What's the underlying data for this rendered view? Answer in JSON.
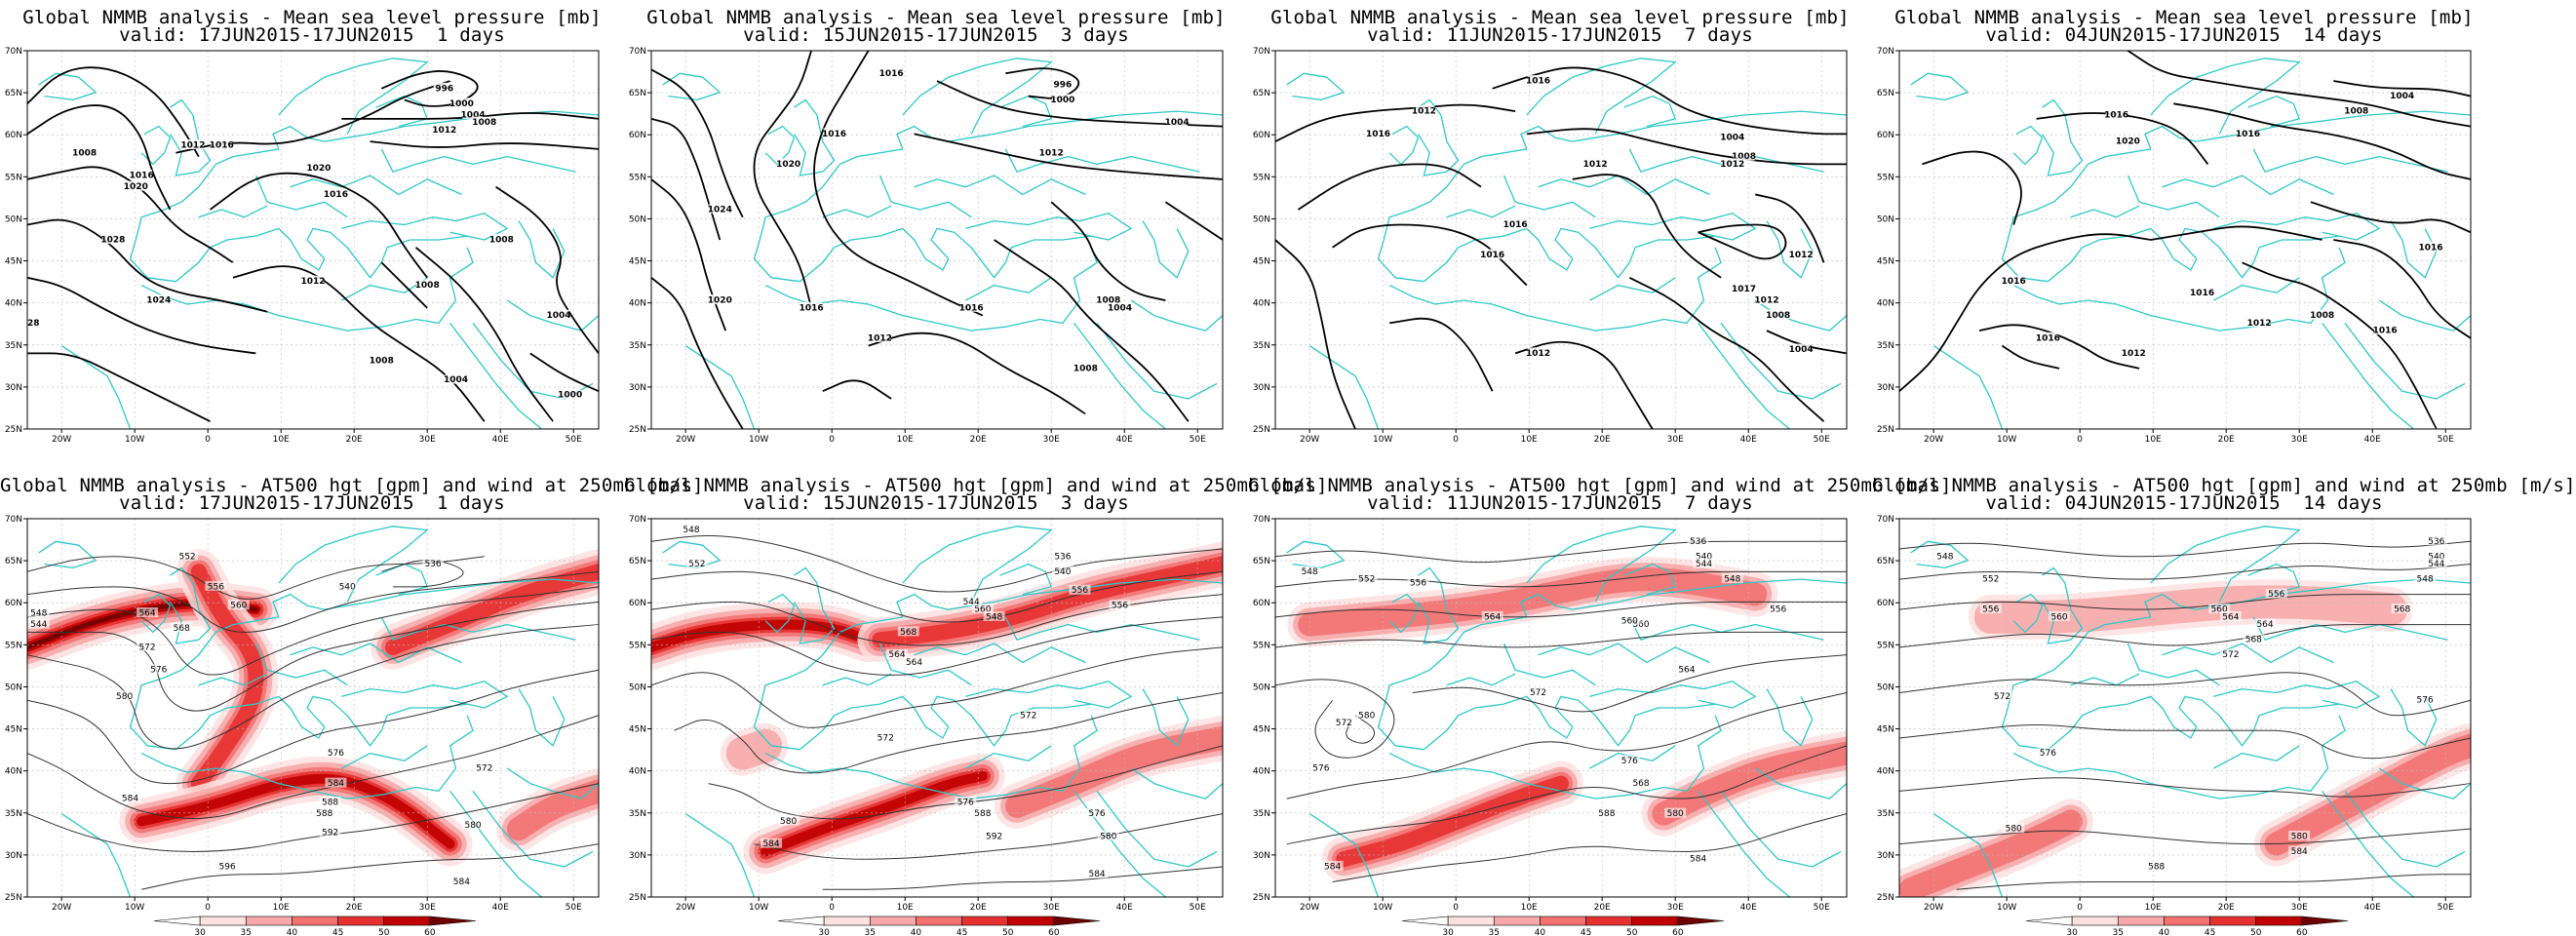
{
  "colors": {
    "coast": "#2ec8c8",
    "isobar": "#000000",
    "height": "#333333",
    "grid": "#bbbbbb",
    "jet": [
      "#fde0e0",
      "#f7a9a9",
      "#f27272",
      "#e63030",
      "#c00000",
      "#700000"
    ]
  },
  "map_axes": {
    "lat_labels": [
      "70N",
      "65N",
      "60N",
      "55N",
      "50N",
      "45N",
      "40N",
      "35N",
      "30N",
      "25N"
    ],
    "lon_labels": [
      "20W",
      "10W",
      "0",
      "10E",
      "20E",
      "30E",
      "40E",
      "50E"
    ]
  },
  "legend": {
    "ticks": [
      "30",
      "35",
      "40",
      "45",
      "50",
      "60"
    ]
  },
  "mslp_panels": [
    {
      "title": "Global NMMB analysis - Mean sea level pressure [mb]",
      "valid": "valid: 17JUN2015-17JUN2015  1 days",
      "labels": [
        "996",
        "1000",
        "1004",
        "1008",
        "1008",
        "1012",
        "1012",
        "1016",
        "1016",
        "1016",
        "1020",
        "1020",
        "1024",
        "1028",
        "1028",
        "1012",
        "1008",
        "1008",
        "1004",
        "1000",
        "1004",
        "1008"
      ]
    },
    {
      "title": "Global NMMB analysis - Mean sea level pressure [mb]",
      "valid": "valid: 15JUN2015-17JUN2015  3 days",
      "labels": [
        "1016",
        "996",
        "1000",
        "1004",
        "1012",
        "1016",
        "1020",
        "1024",
        "1020",
        "1016",
        "1012",
        "1016",
        "1008",
        "1004",
        "1008"
      ]
    },
    {
      "title": "Global NMMB analysis - Mean sea level pressure [mb]",
      "valid": "valid: 11JUN2015-17JUN2015  7 days",
      "labels": [
        "1016",
        "1012",
        "1016",
        "1012",
        "1004",
        "1008",
        "1012",
        "1016",
        "1016",
        "1012",
        "1017",
        "1012",
        "1008",
        "1012",
        "1004"
      ]
    },
    {
      "title": "Global NMMB analysis - Mean sea level pressure [mb]",
      "valid": "valid: 04JUN2015-17JUN2015  14 days",
      "labels": [
        "1016",
        "1004",
        "1008",
        "1016",
        "1020",
        "1016",
        "1016",
        "1016",
        "1016",
        "1012",
        "1008",
        "1012",
        "1016"
      ]
    }
  ],
  "z500_panels": [
    {
      "title": "Global NMMB analysis - AT500 hgt [gpm] and wind at 250mb [m/s]",
      "valid": "valid: 17JUN2015-17JUN2015  1 days",
      "labels": [
        "552",
        "556",
        "560",
        "564",
        "568",
        "572",
        "576",
        "580",
        "584",
        "588",
        "592",
        "596",
        "548",
        "544",
        "540",
        "536",
        "576",
        "584",
        "588",
        "580",
        "572",
        "584"
      ]
    },
    {
      "title": "Global NMMB analysis - AT500 hgt [gpm] and wind at 250mb [m/s]",
      "valid": "valid: 15JUN2015-17JUN2015  3 days",
      "labels": [
        "548",
        "552",
        "556",
        "560",
        "564",
        "568",
        "572",
        "576",
        "580",
        "584",
        "588",
        "592",
        "536",
        "540",
        "544",
        "548",
        "556",
        "564",
        "572",
        "576",
        "580",
        "584"
      ]
    },
    {
      "title": "Global NMMB analysis - AT500 hgt [gpm] and wind at 250mb [m/s]",
      "valid": "valid: 11JUN2015-17JUN2015  7 days",
      "labels": [
        "548",
        "552",
        "556",
        "560",
        "564",
        "572",
        "576",
        "580",
        "584",
        "588",
        "536",
        "540",
        "544",
        "548",
        "556",
        "560",
        "564",
        "568",
        "572",
        "576",
        "580",
        "584"
      ]
    },
    {
      "title": "Global NMMB analysis - AT500 hgt [gpm] and wind at 250mb [m/s]",
      "valid": "valid: 04JUN2015-17JUN2015  14 days",
      "labels": [
        "548",
        "552",
        "556",
        "560",
        "564",
        "568",
        "572",
        "576",
        "580",
        "584",
        "588",
        "536",
        "540",
        "544",
        "548",
        "556",
        "560",
        "564",
        "568",
        "572",
        "576",
        "580"
      ]
    }
  ]
}
